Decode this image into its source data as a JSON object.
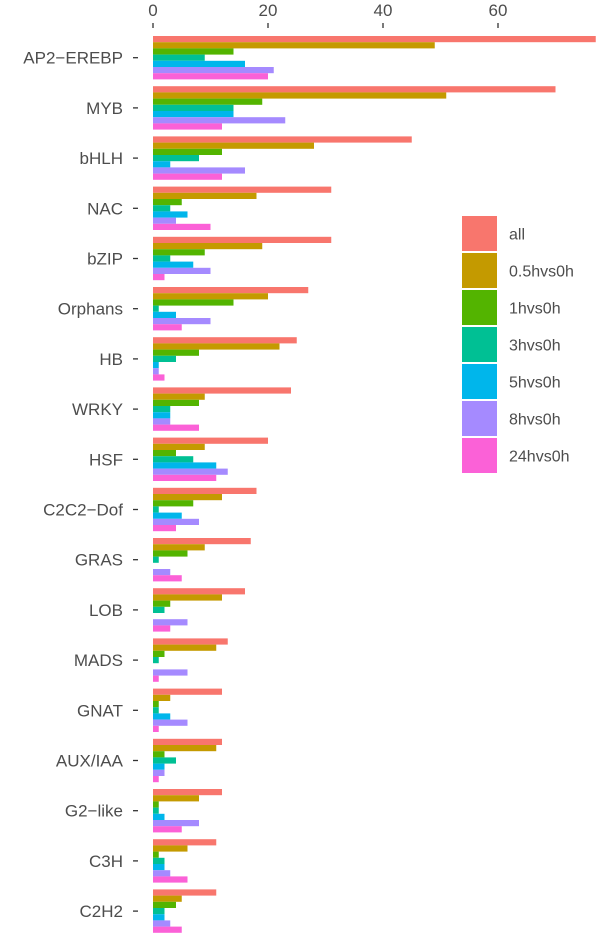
{
  "chart_data": {
    "type": "bar",
    "orientation": "horizontal",
    "title": "",
    "xlabel": "",
    "ylabel": "",
    "x_axis_position": "top",
    "xlim": [
      0,
      77
    ],
    "x_ticks": [
      0,
      20,
      40,
      60
    ],
    "grid": false,
    "legend_position": "right",
    "categories": [
      "AP2−EREBP",
      "MYB",
      "bHLH",
      "NAC",
      "bZIP",
      "Orphans",
      "HB",
      "WRKY",
      "HSF",
      "C2C2−Dof",
      "GRAS",
      "LOB",
      "MADS",
      "GNAT",
      "AUX/IAA",
      "G2−like",
      "C3H",
      "C2H2"
    ],
    "series": [
      {
        "name": "all",
        "color": "#F8766D",
        "values": [
          77,
          70,
          45,
          31,
          31,
          27,
          25,
          24,
          20,
          18,
          17,
          16,
          13,
          12,
          12,
          12,
          11,
          11
        ]
      },
      {
        "name": "0.5hvs0h",
        "color": "#C49A00",
        "values": [
          49,
          51,
          28,
          18,
          19,
          20,
          22,
          9,
          9,
          12,
          9,
          12,
          11,
          3,
          11,
          8,
          6,
          5
        ]
      },
      {
        "name": "1hvs0h",
        "color": "#53B400",
        "values": [
          14,
          19,
          12,
          5,
          9,
          14,
          8,
          8,
          4,
          7,
          6,
          3,
          2,
          1,
          2,
          1,
          1,
          4
        ]
      },
      {
        "name": "3hvs0h",
        "color": "#00C094",
        "values": [
          9,
          14,
          8,
          3,
          3,
          1,
          4,
          3,
          7,
          1,
          1,
          2,
          1,
          1,
          4,
          1,
          2,
          2
        ]
      },
      {
        "name": "5hvs0h",
        "color": "#00B6EB",
        "values": [
          16,
          14,
          3,
          6,
          7,
          4,
          1,
          3,
          11,
          5,
          0,
          0,
          0,
          3,
          2,
          2,
          2,
          2
        ]
      },
      {
        "name": "8hvs0h",
        "color": "#A58AFF",
        "values": [
          21,
          23,
          16,
          4,
          10,
          10,
          1,
          3,
          13,
          8,
          3,
          6,
          6,
          6,
          2,
          8,
          3,
          3
        ]
      },
      {
        "name": "24hvs0h",
        "color": "#FB61D7",
        "values": [
          20,
          12,
          12,
          10,
          2,
          5,
          2,
          8,
          11,
          4,
          5,
          3,
          1,
          1,
          1,
          5,
          6,
          5
        ]
      }
    ]
  }
}
